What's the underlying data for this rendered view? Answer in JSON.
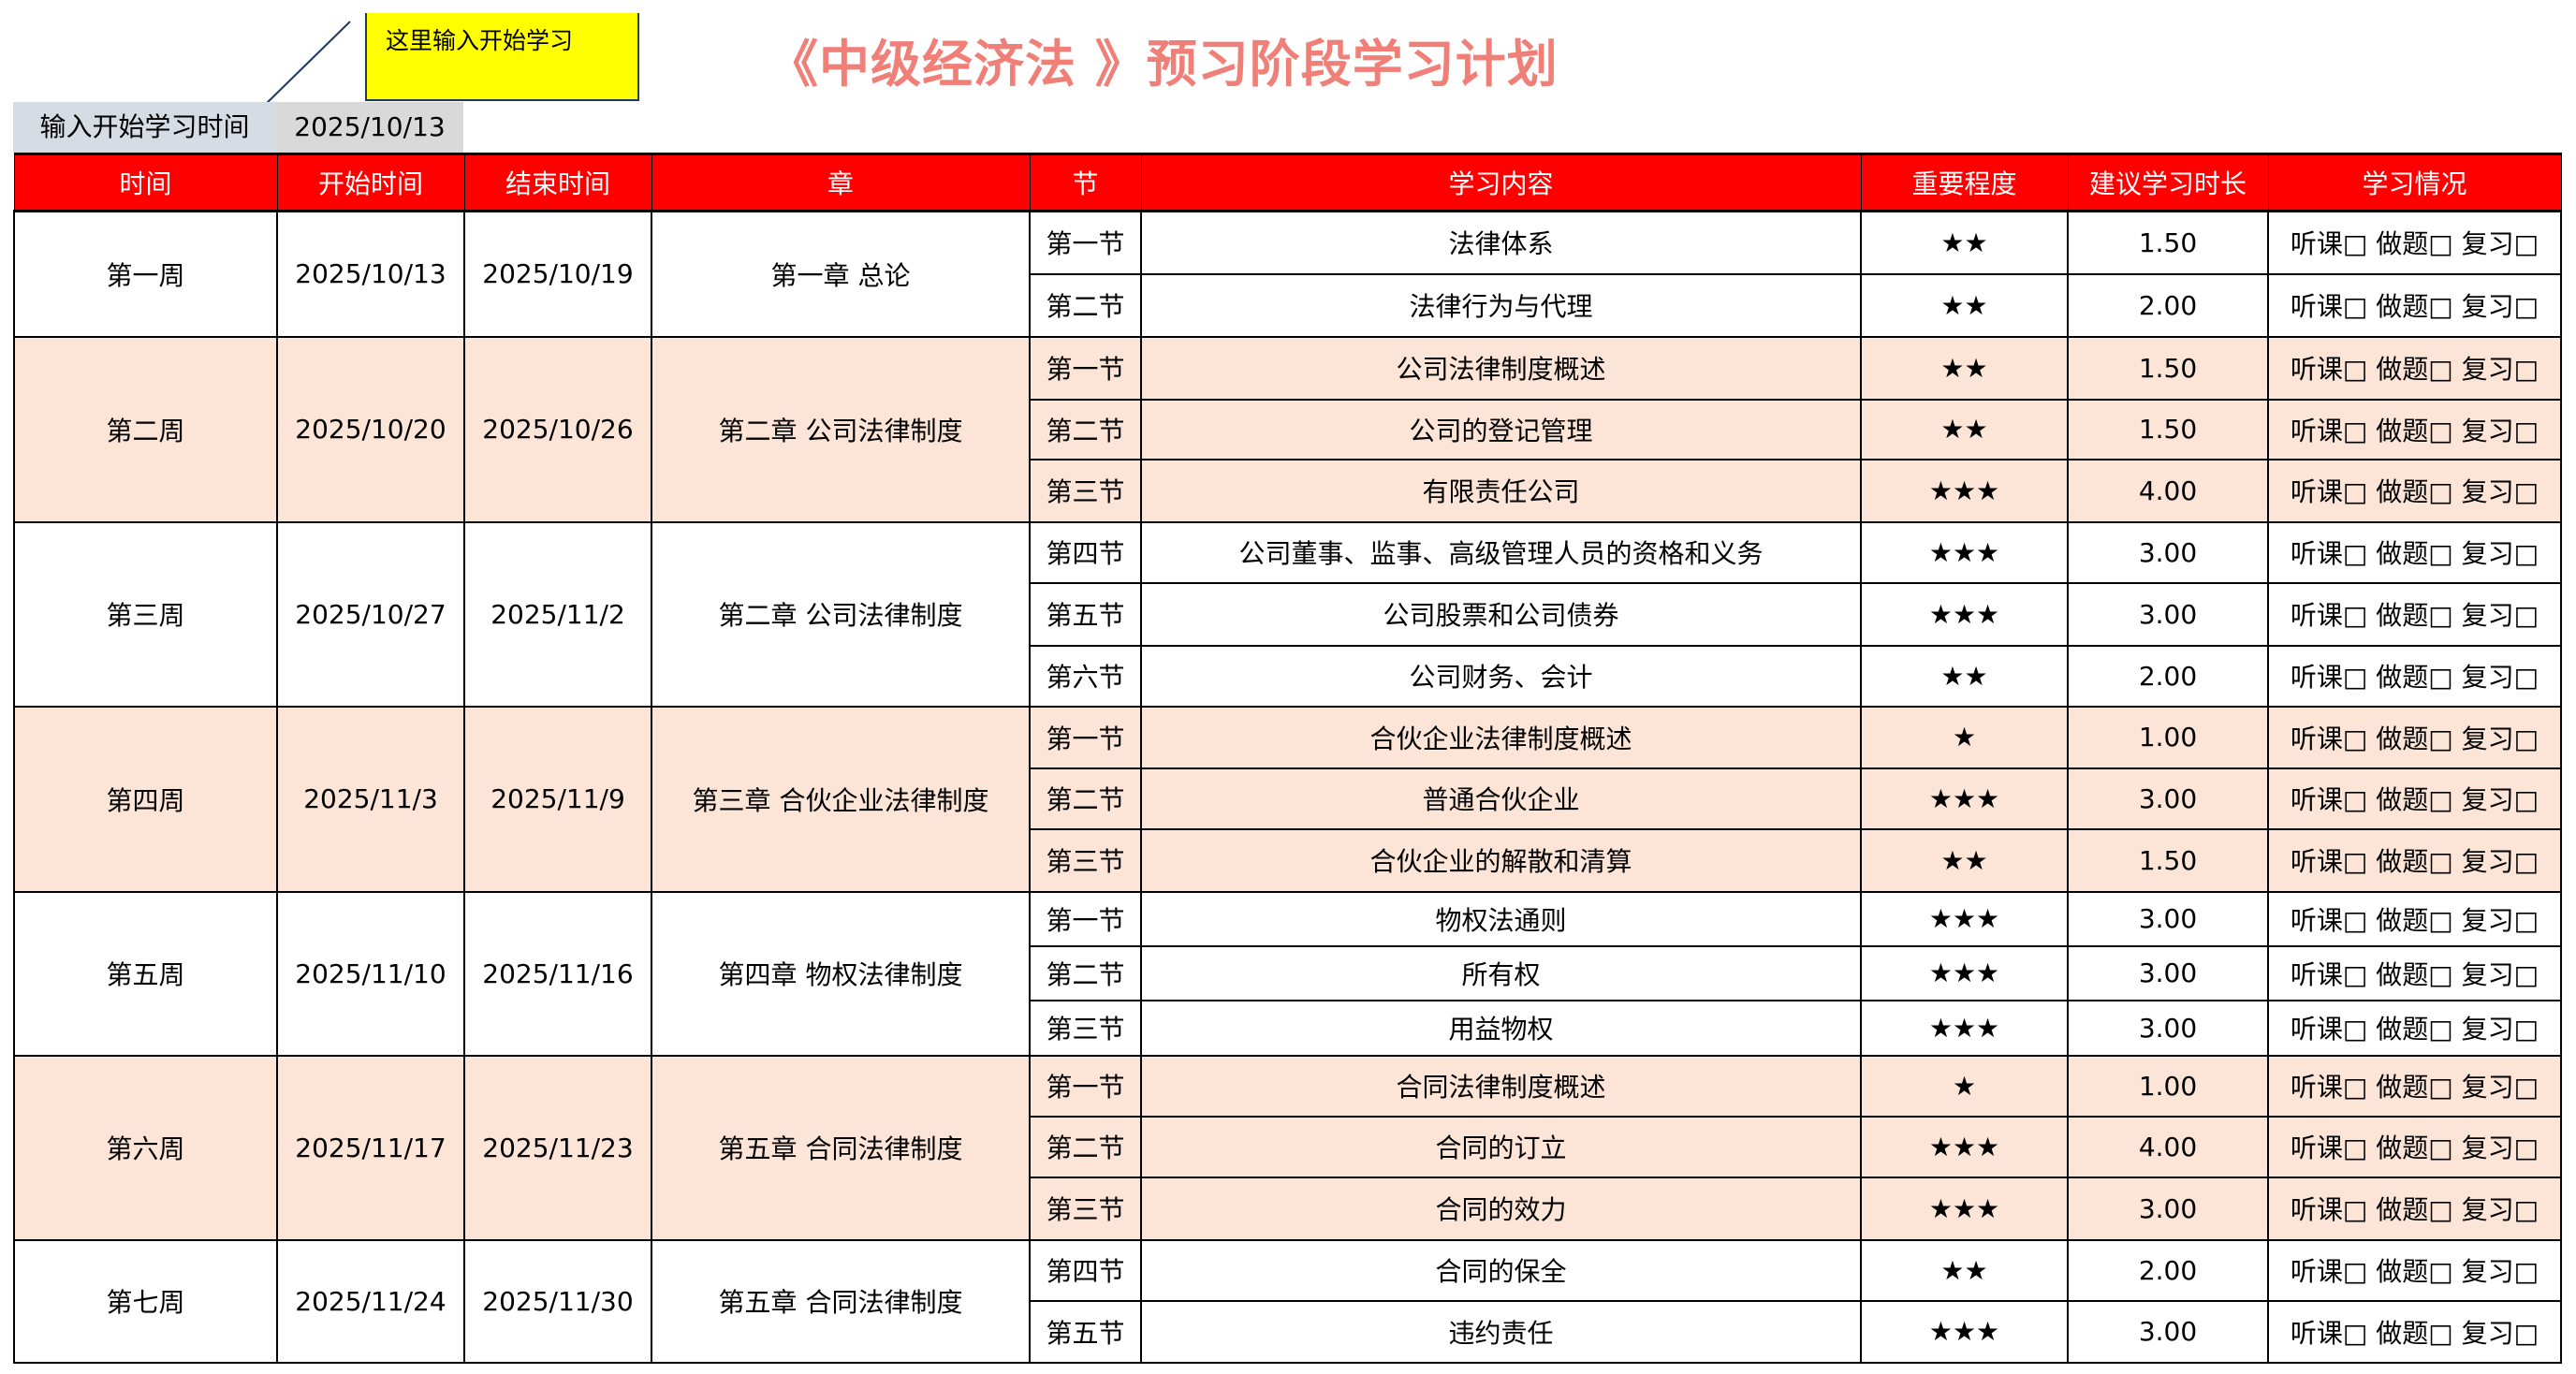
{
  "title": "《中级经济法 》预习阶段学习计划",
  "note": "这里输入开始学习",
  "start": {
    "label": "输入开始学习时间",
    "date": "2025/10/13"
  },
  "colors": {
    "header_bg": "#ff0000",
    "alt_row": "#fce4d6",
    "title": "#f07f78",
    "note_bg": "#ffff00"
  },
  "headers": [
    "时间",
    "开始时间",
    "结束时间",
    "章",
    "节",
    "学习内容",
    "重要程度",
    "建议学习时长",
    "学习情况"
  ],
  "status_text": "听课□ 做题□ 复习□",
  "weeks": [
    {
      "week": "第一周",
      "start": "2025/10/13",
      "end": "2025/10/19",
      "chapter": "第一章 总论",
      "sections": [
        {
          "section": "第一节",
          "content": "法律体系",
          "importance": "★★",
          "hours": "1.50"
        },
        {
          "section": "第二节",
          "content": "法律行为与代理",
          "importance": "★★",
          "hours": "2.00"
        }
      ]
    },
    {
      "week": "第二周",
      "start": "2025/10/20",
      "end": "2025/10/26",
      "chapter": "第二章  公司法律制度",
      "sections": [
        {
          "section": "第一节",
          "content": "公司法律制度概述",
          "importance": "★★",
          "hours": "1.50"
        },
        {
          "section": "第二节",
          "content": "公司的登记管理",
          "importance": "★★",
          "hours": "1.50"
        },
        {
          "section": "第三节",
          "content": "有限责任公司",
          "importance": "★★★",
          "hours": "4.00"
        }
      ]
    },
    {
      "week": "第三周",
      "start": "2025/10/27",
      "end": "2025/11/2",
      "chapter": "第二章  公司法律制度",
      "sections": [
        {
          "section": "第四节",
          "content": "公司董事、监事、高级管理人员的资格和义务",
          "importance": "★★★",
          "hours": "3.00"
        },
        {
          "section": "第五节",
          "content": "公司股票和公司债券",
          "importance": "★★★",
          "hours": "3.00"
        },
        {
          "section": "第六节",
          "content": "公司财务、会计",
          "importance": "★★",
          "hours": "2.00"
        }
      ]
    },
    {
      "week": "第四周",
      "start": "2025/11/3",
      "end": "2025/11/9",
      "chapter": "第三章  合伙企业法律制度",
      "sections": [
        {
          "section": "第一节",
          "content": "合伙企业法律制度概述",
          "importance": "★",
          "hours": "1.00"
        },
        {
          "section": "第二节",
          "content": "普通合伙企业",
          "importance": "★★★",
          "hours": "3.00"
        },
        {
          "section": "第三节",
          "content": "合伙企业的解散和清算",
          "importance": "★★",
          "hours": "1.50"
        }
      ]
    },
    {
      "week": "第五周",
      "start": "2025/11/10",
      "end": "2025/11/16",
      "chapter": "第四章  物权法律制度",
      "sections": [
        {
          "section": "第一节",
          "content": "物权法通则",
          "importance": "★★★",
          "hours": "3.00"
        },
        {
          "section": "第二节",
          "content": "所有权",
          "importance": "★★★",
          "hours": "3.00"
        },
        {
          "section": "第三节",
          "content": "用益物权",
          "importance": "★★★",
          "hours": "3.00"
        }
      ]
    },
    {
      "week": "第六周",
      "start": "2025/11/17",
      "end": "2025/11/23",
      "chapter": "第五章  合同法律制度",
      "sections": [
        {
          "section": "第一节",
          "content": "合同法律制度概述",
          "importance": "★",
          "hours": "1.00"
        },
        {
          "section": "第二节",
          "content": "合同的订立",
          "importance": "★★★",
          "hours": "4.00"
        },
        {
          "section": "第三节",
          "content": "合同的效力",
          "importance": "★★★",
          "hours": "3.00"
        }
      ]
    },
    {
      "week": "第七周",
      "start": "2025/11/24",
      "end": "2025/11/30",
      "chapter": "第五章  合同法律制度",
      "sections": [
        {
          "section": "第四节",
          "content": "合同的保全",
          "importance": "★★",
          "hours": "2.00"
        },
        {
          "section": "第五节",
          "content": "违约责任",
          "importance": "★★★",
          "hours": "3.00"
        }
      ]
    }
  ]
}
